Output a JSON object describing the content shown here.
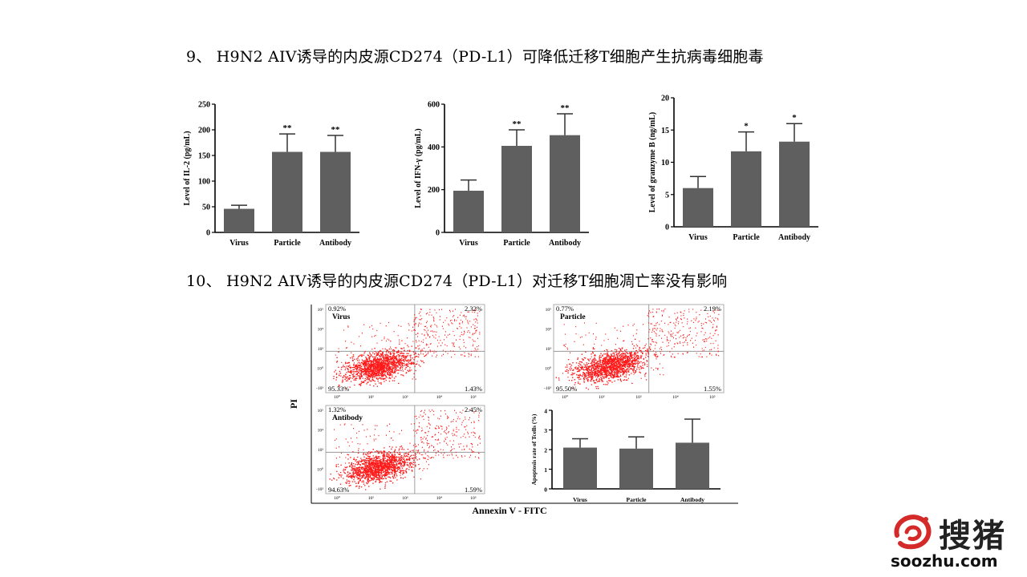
{
  "headings": {
    "h9": "9、 H9N2 AIV诱导的内皮源CD274（PD-L1）可降低迁移T细胞产生抗病毒细胞毒",
    "h10": "10、 H9N2 AIV诱导的内皮源CD274（PD-L1）对迁移T细胞凋亡率没有影响"
  },
  "chart_data": [
    {
      "type": "bar",
      "categories": [
        "Virus",
        "Particle",
        "Antibody"
      ],
      "values": [
        46,
        157,
        157
      ],
      "errors": [
        7,
        35,
        32
      ],
      "significance": [
        "",
        "**",
        "**"
      ],
      "ylabel": "Level of IL-2 (pg/mL)",
      "ylim": [
        0,
        250
      ],
      "yticks": [
        0,
        50,
        100,
        150,
        200,
        250
      ],
      "color": "#5f5f5f"
    },
    {
      "type": "bar",
      "categories": [
        "Virus",
        "Particle",
        "Antibody"
      ],
      "values": [
        195,
        405,
        455
      ],
      "errors": [
        50,
        75,
        100
      ],
      "significance": [
        "",
        "**",
        "**"
      ],
      "ylabel": "Level of IFN-γ (pg/mL)",
      "ylim": [
        0,
        600
      ],
      "yticks": [
        0,
        200,
        400,
        600
      ],
      "color": "#5f5f5f"
    },
    {
      "type": "bar",
      "categories": [
        "Virus",
        "Particle",
        "Antibody"
      ],
      "values": [
        6.0,
        11.7,
        13.2
      ],
      "errors": [
        1.8,
        3.0,
        2.8
      ],
      "significance": [
        "",
        "*",
        "*"
      ],
      "ylabel": "Level of granzyme B (ng/mL)",
      "ylim": [
        0,
        20
      ],
      "yticks": [
        0,
        5,
        10,
        15,
        20
      ],
      "color": "#5f5f5f"
    },
    {
      "type": "bar",
      "categories": [
        "Virus",
        "Particle",
        "Antibody"
      ],
      "values": [
        2.1,
        2.05,
        2.35
      ],
      "errors": [
        0.45,
        0.6,
        1.2
      ],
      "ylabel": "Apoptosis rate of Tcells (%)",
      "ylim": [
        0,
        4
      ],
      "yticks": [
        0,
        1,
        2,
        3,
        4
      ],
      "color": "#5f5f5f"
    }
  ],
  "flow": {
    "y_axis_label": "PI",
    "x_axis_label": "Annexin V - FITC",
    "panels": [
      {
        "label": "Virus",
        "q_ul": "0.92%",
        "q_ur": "2.32%",
        "q_ll": "95.33%",
        "q_lr": "1.43%"
      },
      {
        "label": "Particle",
        "q_ul": "0.77%",
        "q_ur": "2.19%",
        "q_ll": "95.50%",
        "q_lr": "1.55%"
      },
      {
        "label": "Antibody",
        "q_ul": "1.32%",
        "q_ur": "2.45%",
        "q_ll": "94.63%",
        "q_lr": "1.59%"
      }
    ],
    "dot_color": "#ff1a1a"
  },
  "logo": {
    "cn": "搜猪",
    "url": "soozhu.com",
    "color": "#d42a2a"
  }
}
